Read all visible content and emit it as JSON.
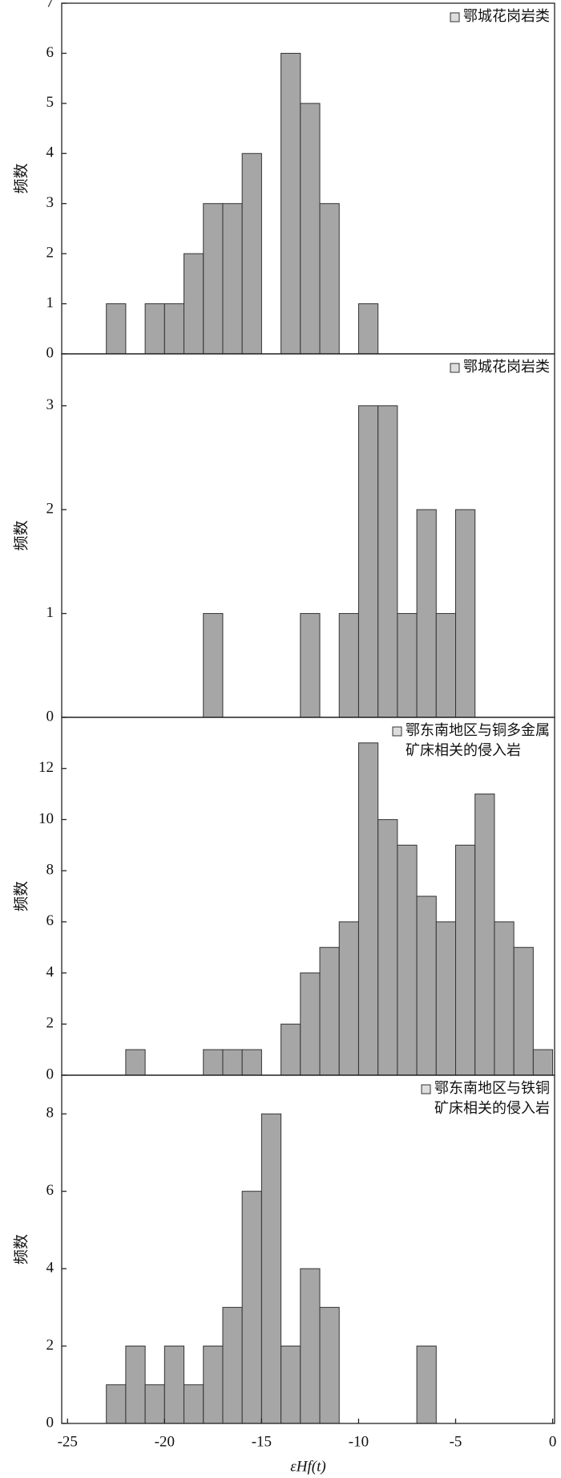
{
  "chart_data": [
    {
      "type": "histogram",
      "legend": [
        "鄂城花岗岩类"
      ],
      "ylabel": "频数",
      "color": "#a6a6a6",
      "bins": [
        -24,
        -23,
        -22,
        -21,
        -20,
        -19,
        -18,
        -17,
        -16,
        -15,
        -14,
        -13,
        -12,
        -11,
        -10,
        -9,
        -8,
        -7,
        -6,
        -5,
        -4,
        -3,
        -2,
        -1,
        0
      ],
      "values": [
        0,
        1,
        0,
        1,
        1,
        2,
        3,
        3,
        4,
        0,
        6,
        5,
        3,
        0,
        1,
        0,
        0,
        0,
        0,
        0,
        0,
        0,
        0,
        0
      ],
      "xlim": [
        -25.3,
        0.1
      ],
      "ylim": [
        0,
        7
      ],
      "yticks": [
        0,
        1,
        2,
        3,
        4,
        5,
        6,
        7
      ]
    },
    {
      "type": "histogram",
      "legend": [
        "鄂城花岗岩类"
      ],
      "ylabel": "频数",
      "color": "#a6a6a6",
      "bins": [
        -24,
        -23,
        -22,
        -21,
        -20,
        -19,
        -18,
        -17,
        -16,
        -15,
        -14,
        -13,
        -12,
        -11,
        -10,
        -9,
        -8,
        -7,
        -6,
        -5,
        -4,
        -3,
        -2,
        -1,
        0
      ],
      "values": [
        0,
        0,
        0,
        0,
        0,
        0,
        1,
        0,
        0,
        0,
        0,
        1,
        0,
        1,
        3,
        3,
        1,
        2,
        1,
        2,
        0,
        0,
        0,
        0
      ],
      "xlim": [
        -25.3,
        0.1
      ],
      "ylim": [
        0,
        3.5
      ],
      "yticks": [
        0,
        1,
        2,
        3
      ]
    },
    {
      "type": "histogram",
      "legend": [
        "鄂东南地区与铜多金属",
        "矿床相关的侵入岩"
      ],
      "ylabel": "频数",
      "color": "#a6a6a6",
      "bins": [
        -24,
        -23,
        -22,
        -21,
        -20,
        -19,
        -18,
        -17,
        -16,
        -15,
        -14,
        -13,
        -12,
        -11,
        -10,
        -9,
        -8,
        -7,
        -6,
        -5,
        -4,
        -3,
        -2,
        -1,
        0
      ],
      "values": [
        0,
        0,
        1,
        0,
        0,
        0,
        1,
        1,
        1,
        0,
        2,
        4,
        5,
        6,
        13,
        10,
        9,
        7,
        6,
        9,
        11,
        6,
        5,
        1
      ],
      "xlim": [
        -25.3,
        0.1
      ],
      "ylim": [
        0,
        14
      ],
      "yticks": [
        0,
        2,
        4,
        6,
        8,
        10,
        12
      ]
    },
    {
      "type": "histogram",
      "legend": [
        "鄂东南地区与铁铜",
        "矿床相关的侵入岩"
      ],
      "ylabel": "频数",
      "color": "#a6a6a6",
      "bins": [
        -24,
        -23,
        -22,
        -21,
        -20,
        -19,
        -18,
        -17,
        -16,
        -15,
        -14,
        -13,
        -12,
        -11,
        -10,
        -9,
        -8,
        -7,
        -6,
        -5,
        -4,
        -3,
        -2,
        -1,
        0
      ],
      "values": [
        0,
        1,
        2,
        1,
        2,
        1,
        2,
        3,
        6,
        8,
        2,
        4,
        3,
        0,
        0,
        0,
        0,
        2,
        0,
        0,
        0,
        0,
        0,
        0
      ],
      "xlim": [
        -25.3,
        0.1
      ],
      "ylim": [
        0,
        9
      ],
      "yticks": [
        0,
        2,
        4,
        6,
        8
      ],
      "xticks": [
        -25,
        -20,
        -15,
        -10,
        -5,
        0
      ],
      "xlabel": "εHf(t)"
    }
  ]
}
